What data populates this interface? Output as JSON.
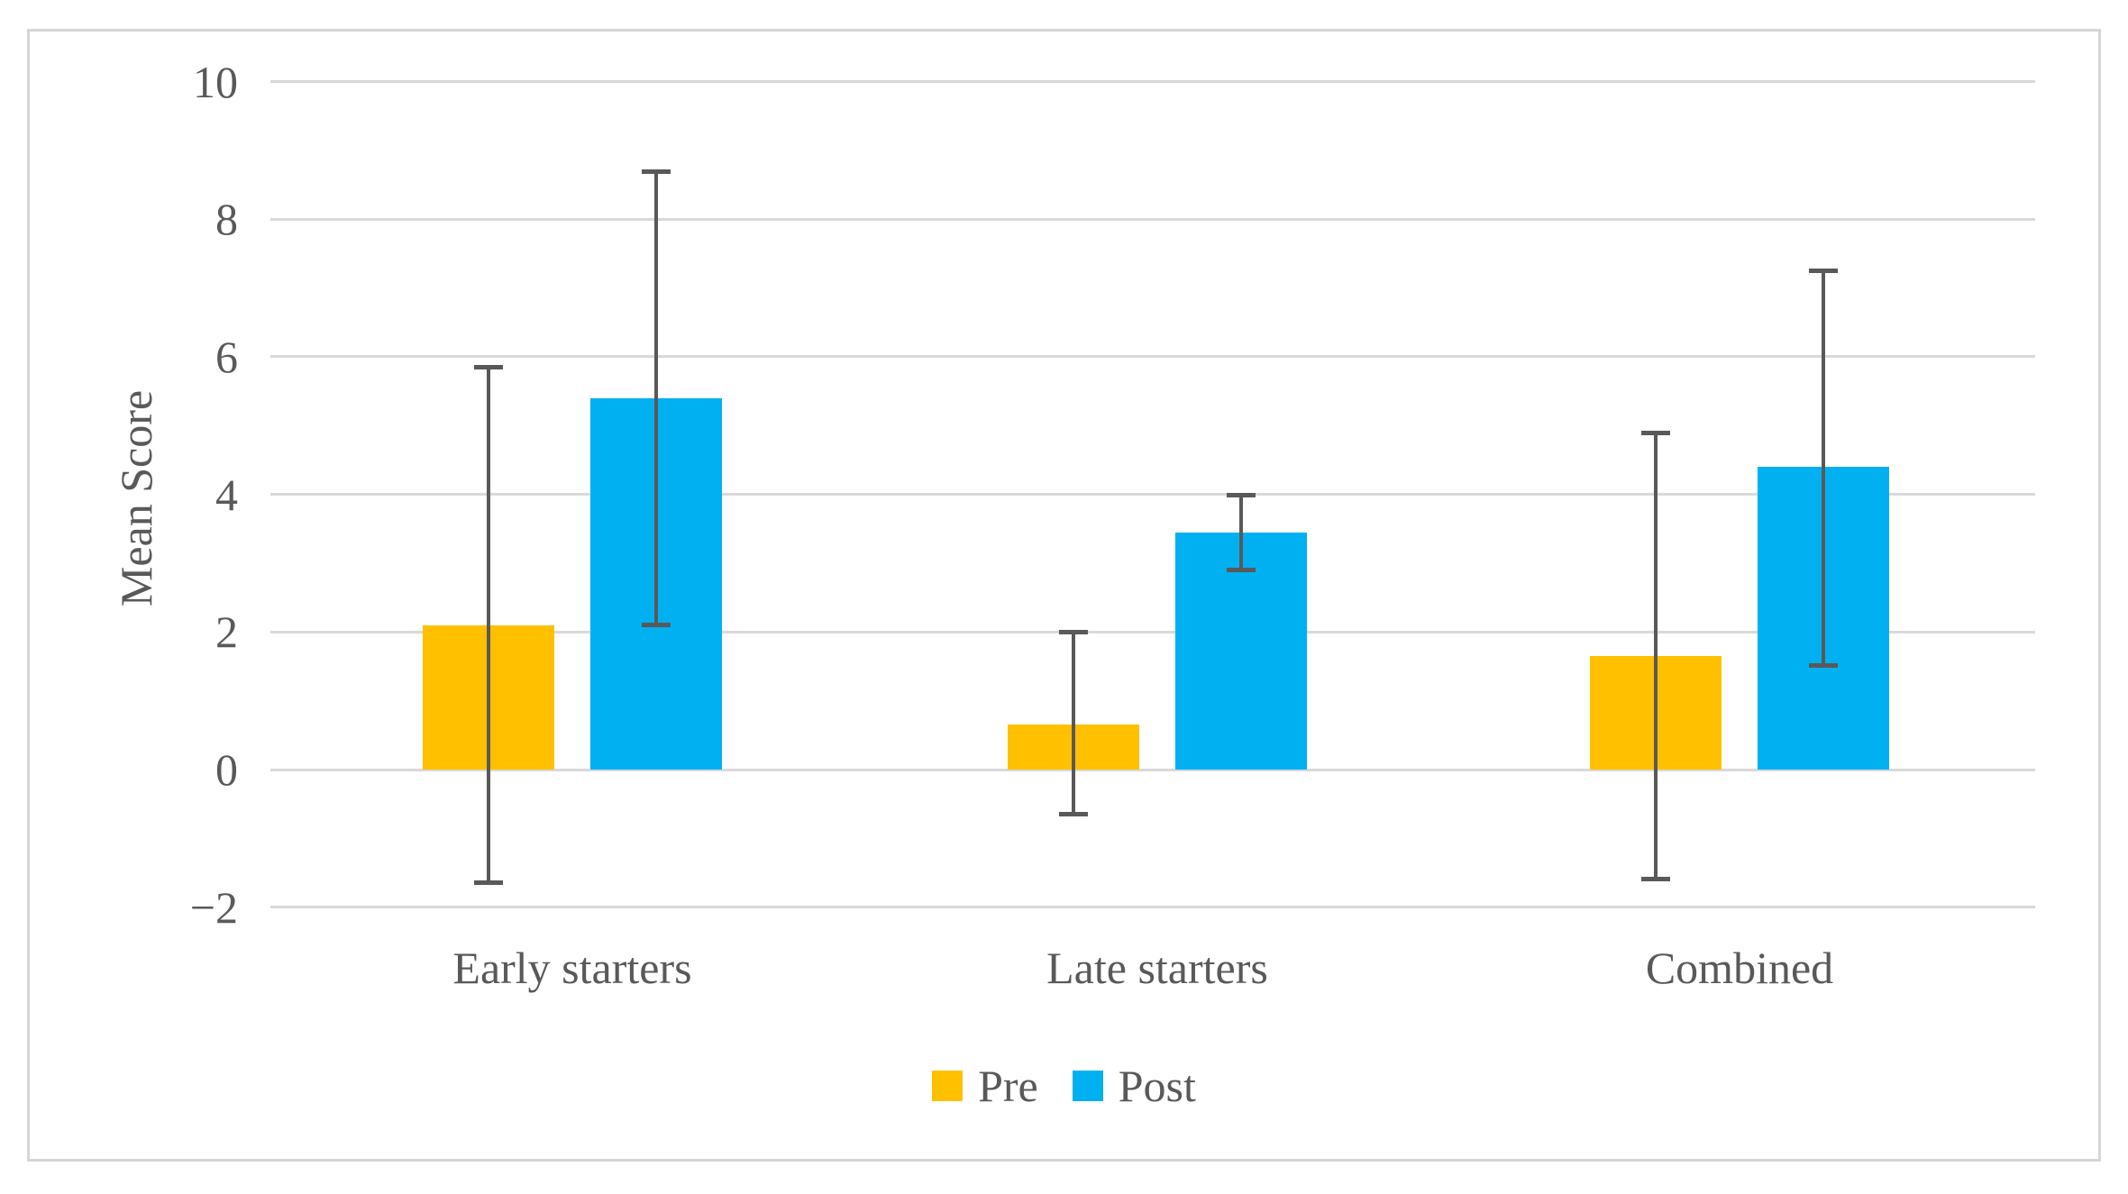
{
  "figure": {
    "background_color": "#FFFFFF",
    "frame_border_color": "#D5D5D5",
    "text_color": "#595959",
    "gridline_color": "#D9D9D9",
    "error_bar_color": "#595959"
  },
  "chart_data": {
    "type": "bar",
    "title": "",
    "xlabel": "",
    "ylabel": "Mean Score",
    "categories": [
      "Early starters",
      "Late starters",
      "Combined"
    ],
    "series": [
      {
        "name": "Pre",
        "color": "#FFC000",
        "values": [
          2.1,
          0.65,
          1.65
        ],
        "error_top": [
          5.85,
          2.0,
          4.9
        ],
        "error_bottom": [
          -1.65,
          -0.65,
          -1.6
        ]
      },
      {
        "name": "Post",
        "color": "#00B0F0",
        "values": [
          5.4,
          3.45,
          4.4
        ],
        "error_top": [
          8.7,
          4.0,
          7.25
        ],
        "error_bottom": [
          2.1,
          2.9,
          1.5
        ]
      }
    ],
    "ylim": [
      -2,
      10
    ],
    "yticks": [
      10,
      8,
      6,
      4,
      2,
      0,
      -2
    ],
    "ytick_labels": [
      "10",
      "8",
      "6",
      "4",
      "2",
      "0",
      "−2"
    ],
    "grid": true,
    "legend_position": "bottom-center",
    "error_bars": true
  }
}
